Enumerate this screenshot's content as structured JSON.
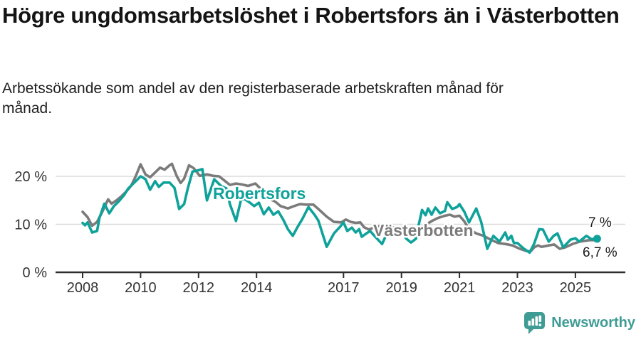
{
  "header": {
    "title": "Högre ungdomsarbetslöshet i Robertsfors än i Västerbotten",
    "subtitle": "Arbetssökande som andel av den registerbaserade arbetskraften månad för månad."
  },
  "footer": {
    "brand": "Newsworthy",
    "brand_color": "#3f9c94"
  },
  "chart_data": {
    "type": "line",
    "title": "Högre ungdomsarbetslöshet i Robertsfors än i Västerbotten",
    "subtitle": "Arbetssökande som andel av den registerbaserade arbetskraften månad för månad.",
    "unit": "%",
    "x_range": [
      2008,
      2025.8
    ],
    "ylim": [
      0,
      24
    ],
    "grid": "horizontal",
    "y_gridlines": [
      10,
      20
    ],
    "y_ticks": [
      {
        "value": 0,
        "label": "0 %"
      },
      {
        "value": 10,
        "label": "10 %"
      },
      {
        "value": 20,
        "label": "20 %"
      }
    ],
    "x_ticks": [
      {
        "value": 2008,
        "label": "2008"
      },
      {
        "value": 2010,
        "label": "2010"
      },
      {
        "value": 2012,
        "label": "2012"
      },
      {
        "value": 2014,
        "label": "2014"
      },
      {
        "value": 2017,
        "label": "2017"
      },
      {
        "value": 2019,
        "label": "2019"
      },
      {
        "value": 2021,
        "label": "2021"
      },
      {
        "value": 2023,
        "label": "2023"
      },
      {
        "value": 2025,
        "label": "2025"
      }
    ],
    "legend_position": "inline-labels",
    "series": [
      {
        "name": "Robertsfors",
        "color": "#0fa29a",
        "end_label": "7 %",
        "end_value": 7.0,
        "end_dot": true,
        "points": [
          [
            2008.0,
            10.3
          ],
          [
            2008.08,
            9.8
          ],
          [
            2008.17,
            10.4
          ],
          [
            2008.33,
            8.3
          ],
          [
            2008.5,
            8.6
          ],
          [
            2008.58,
            11.3
          ],
          [
            2008.75,
            14.3
          ],
          [
            2008.92,
            12.3
          ],
          [
            2009.08,
            13.8
          ],
          [
            2009.25,
            14.8
          ],
          [
            2009.42,
            16.0
          ],
          [
            2009.58,
            17.5
          ],
          [
            2009.75,
            18.5
          ],
          [
            2009.92,
            19.5
          ],
          [
            2010.0,
            20.0
          ],
          [
            2010.17,
            19.4
          ],
          [
            2010.33,
            17.2
          ],
          [
            2010.5,
            19.0
          ],
          [
            2010.63,
            17.8
          ],
          [
            2010.79,
            18.7
          ],
          [
            2011.0,
            18.7
          ],
          [
            2011.17,
            17.6
          ],
          [
            2011.33,
            13.2
          ],
          [
            2011.5,
            14.2
          ],
          [
            2011.63,
            17.5
          ],
          [
            2011.79,
            21.0
          ],
          [
            2011.96,
            21.2
          ],
          [
            2012.13,
            21.5
          ],
          [
            2012.29,
            15.0
          ],
          [
            2012.54,
            19.4
          ],
          [
            2012.79,
            17.9
          ],
          [
            2012.96,
            17.5
          ],
          [
            2013.08,
            14.2
          ],
          [
            2013.29,
            10.7
          ],
          [
            2013.46,
            15.0
          ],
          [
            2013.58,
            15.3
          ],
          [
            2013.75,
            14.6
          ],
          [
            2013.92,
            13.8
          ],
          [
            2014.08,
            14.5
          ],
          [
            2014.25,
            12.1
          ],
          [
            2014.42,
            13.5
          ],
          [
            2014.58,
            12.0
          ],
          [
            2014.75,
            12.7
          ],
          [
            2014.92,
            11.0
          ],
          [
            2015.08,
            9.0
          ],
          [
            2015.25,
            7.6
          ],
          [
            2015.42,
            9.5
          ],
          [
            2015.58,
            11.1
          ],
          [
            2015.79,
            13.6
          ],
          [
            2016.0,
            12.0
          ],
          [
            2016.13,
            10.8
          ],
          [
            2016.42,
            5.3
          ],
          [
            2016.67,
            8.1
          ],
          [
            2016.9,
            9.6
          ],
          [
            2017.0,
            10.4
          ],
          [
            2017.13,
            8.6
          ],
          [
            2017.29,
            9.3
          ],
          [
            2017.42,
            8.3
          ],
          [
            2017.54,
            9.0
          ],
          [
            2017.63,
            7.4
          ],
          [
            2017.79,
            8.1
          ],
          [
            2017.92,
            8.6
          ],
          [
            2018.08,
            7.5
          ],
          [
            2018.33,
            5.9
          ],
          [
            2018.5,
            8.1
          ],
          [
            2018.67,
            8.3
          ],
          [
            2018.83,
            7.8
          ],
          [
            2019.0,
            8.3
          ],
          [
            2019.17,
            7.0
          ],
          [
            2019.33,
            6.2
          ],
          [
            2019.5,
            7.0
          ],
          [
            2019.58,
            9.5
          ],
          [
            2019.71,
            13.0
          ],
          [
            2019.83,
            11.9
          ],
          [
            2019.92,
            13.3
          ],
          [
            2020.04,
            12.0
          ],
          [
            2020.17,
            13.5
          ],
          [
            2020.33,
            12.3
          ],
          [
            2020.5,
            12.8
          ],
          [
            2020.58,
            14.6
          ],
          [
            2020.75,
            13.2
          ],
          [
            2020.92,
            13.6
          ],
          [
            2021.0,
            14.2
          ],
          [
            2021.17,
            12.6
          ],
          [
            2021.33,
            10.4
          ],
          [
            2021.58,
            13.3
          ],
          [
            2021.75,
            10.5
          ],
          [
            2021.96,
            4.9
          ],
          [
            2022.17,
            7.6
          ],
          [
            2022.38,
            6.4
          ],
          [
            2022.58,
            8.3
          ],
          [
            2022.67,
            6.8
          ],
          [
            2022.79,
            7.6
          ],
          [
            2022.88,
            6.1
          ],
          [
            2023.0,
            6.1
          ],
          [
            2023.21,
            5.0
          ],
          [
            2023.42,
            4.1
          ],
          [
            2023.58,
            6.0
          ],
          [
            2023.75,
            9.0
          ],
          [
            2023.88,
            8.9
          ],
          [
            2024.08,
            6.4
          ],
          [
            2024.25,
            7.6
          ],
          [
            2024.38,
            8.1
          ],
          [
            2024.58,
            5.2
          ],
          [
            2024.83,
            6.8
          ],
          [
            2025.0,
            7.1
          ],
          [
            2025.13,
            6.4
          ],
          [
            2025.38,
            7.6
          ],
          [
            2025.55,
            6.9
          ],
          [
            2025.75,
            7.0
          ]
        ]
      },
      {
        "name": "Västerbotten",
        "color": "#7b7b7b",
        "end_label": "6,7 %",
        "end_value": 6.7,
        "end_dot": false,
        "points": [
          [
            2008.0,
            12.6
          ],
          [
            2008.17,
            11.5
          ],
          [
            2008.33,
            9.7
          ],
          [
            2008.5,
            10.5
          ],
          [
            2008.67,
            12.5
          ],
          [
            2008.88,
            15.2
          ],
          [
            2009.0,
            14.3
          ],
          [
            2009.17,
            15.0
          ],
          [
            2009.33,
            15.8
          ],
          [
            2009.5,
            16.8
          ],
          [
            2009.67,
            18.0
          ],
          [
            2009.83,
            20.0
          ],
          [
            2010.0,
            22.5
          ],
          [
            2010.17,
            20.4
          ],
          [
            2010.33,
            19.8
          ],
          [
            2010.5,
            20.8
          ],
          [
            2010.67,
            21.8
          ],
          [
            2010.83,
            21.4
          ],
          [
            2011.0,
            22.3
          ],
          [
            2011.08,
            22.6
          ],
          [
            2011.25,
            20.0
          ],
          [
            2011.38,
            18.6
          ],
          [
            2011.5,
            19.5
          ],
          [
            2011.67,
            22.3
          ],
          [
            2011.83,
            21.7
          ],
          [
            2012.04,
            20.1
          ],
          [
            2012.29,
            20.4
          ],
          [
            2012.5,
            20.1
          ],
          [
            2012.71,
            20.0
          ],
          [
            2012.92,
            19.0
          ],
          [
            2013.08,
            18.2
          ],
          [
            2013.29,
            18.5
          ],
          [
            2013.5,
            18.3
          ],
          [
            2013.71,
            18.0
          ],
          [
            2013.96,
            18.5
          ],
          [
            2014.21,
            17.0
          ],
          [
            2014.42,
            15.3
          ],
          [
            2014.63,
            14.8
          ],
          [
            2014.83,
            13.8
          ],
          [
            2015.08,
            13.3
          ],
          [
            2015.29,
            13.8
          ],
          [
            2015.5,
            14.2
          ],
          [
            2015.71,
            14.1
          ],
          [
            2015.96,
            14.1
          ],
          [
            2016.17,
            13.0
          ],
          [
            2016.42,
            11.6
          ],
          [
            2016.67,
            10.5
          ],
          [
            2016.92,
            10.4
          ],
          [
            2017.08,
            11.0
          ],
          [
            2017.25,
            10.5
          ],
          [
            2017.42,
            10.3
          ],
          [
            2017.58,
            10.4
          ],
          [
            2017.71,
            9.4
          ],
          [
            2017.88,
            8.9
          ],
          [
            2018.04,
            9.3
          ],
          [
            2018.25,
            9.6
          ],
          [
            2018.5,
            9.4
          ],
          [
            2018.75,
            9.3
          ],
          [
            2019.0,
            9.4
          ],
          [
            2019.25,
            9.1
          ],
          [
            2019.5,
            9.2
          ],
          [
            2019.75,
            9.6
          ],
          [
            2019.92,
            10.2
          ],
          [
            2020.08,
            10.8
          ],
          [
            2020.25,
            11.3
          ],
          [
            2020.5,
            11.8
          ],
          [
            2020.67,
            12.0
          ],
          [
            2020.83,
            11.6
          ],
          [
            2021.0,
            11.8
          ],
          [
            2021.17,
            10.6
          ],
          [
            2021.33,
            9.0
          ],
          [
            2021.58,
            8.1
          ],
          [
            2021.83,
            7.6
          ],
          [
            2022.08,
            6.8
          ],
          [
            2022.33,
            6.1
          ],
          [
            2022.58,
            5.9
          ],
          [
            2022.83,
            5.6
          ],
          [
            2023.08,
            4.9
          ],
          [
            2023.33,
            4.4
          ],
          [
            2023.46,
            4.4
          ],
          [
            2023.58,
            5.2
          ],
          [
            2023.71,
            5.6
          ],
          [
            2023.83,
            5.3
          ],
          [
            2024.08,
            5.6
          ],
          [
            2024.27,
            5.8
          ],
          [
            2024.46,
            4.9
          ],
          [
            2024.65,
            5.2
          ],
          [
            2024.9,
            5.9
          ],
          [
            2025.15,
            6.4
          ],
          [
            2025.48,
            6.7
          ],
          [
            2025.67,
            6.7
          ]
        ]
      }
    ]
  }
}
